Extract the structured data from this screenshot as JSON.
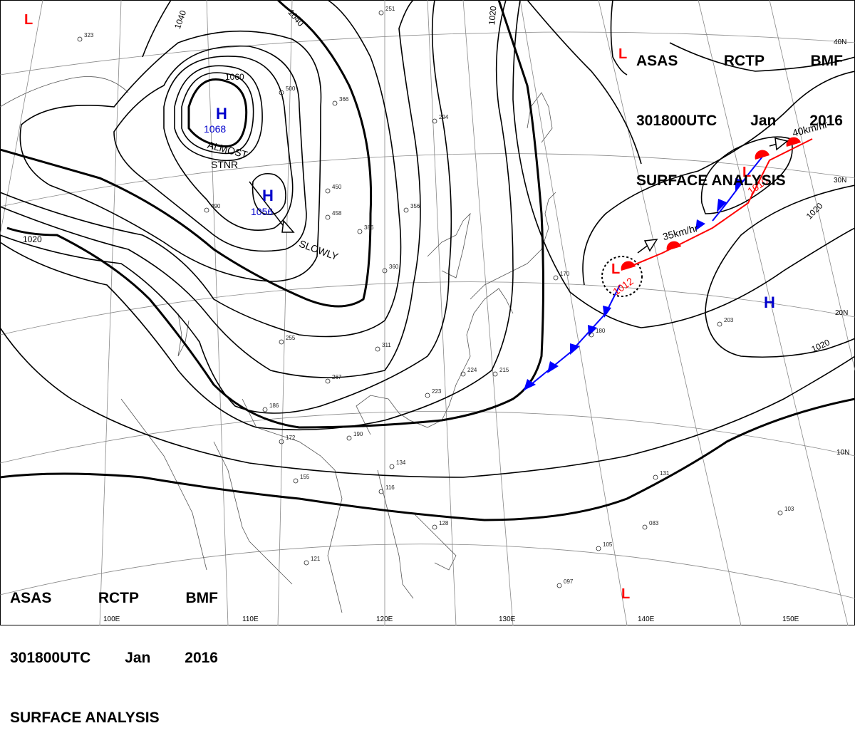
{
  "title": {
    "line1": [
      "ASAS",
      "RCTP",
      "BMF"
    ],
    "line2": [
      "301800UTC",
      "Jan",
      "2016"
    ],
    "line3": "SURFACE ANALYSIS"
  },
  "pressure_systems": [
    {
      "type": "H",
      "value": "1068",
      "color": "#0000cc"
    },
    {
      "type": "H",
      "value": "1056",
      "color": "#0000cc"
    },
    {
      "type": "H",
      "value": "",
      "color": "#0000cc"
    },
    {
      "type": "L",
      "value": "1012",
      "color": "#ff0000"
    },
    {
      "type": "L",
      "value": "1010",
      "color": "#ff0000"
    },
    {
      "type": "L",
      "value": "",
      "color": "#ff0000"
    },
    {
      "type": "L",
      "value": "",
      "color": "#ff0000"
    },
    {
      "type": "L",
      "value": "",
      "color": "#ff0000"
    }
  ],
  "isobar_labels": [
    "1040",
    "1040",
    "1060",
    "1020",
    "1020",
    "1020",
    "1020"
  ],
  "motion_labels": [
    "ALMOST",
    "STNR",
    "SLOWLY",
    "35km/hr",
    "40km/hr"
  ],
  "latitude_labels": [
    "40N",
    "30N",
    "20N",
    "10N"
  ],
  "longitude_labels": [
    "100E",
    "110E",
    "120E",
    "130E",
    "140E",
    "150E"
  ],
  "station_obs": [
    "323",
    "251",
    "366",
    "294",
    "500",
    "450",
    "490",
    "458",
    "386",
    "356",
    "360",
    "311",
    "267",
    "255",
    "186",
    "172",
    "155",
    "190",
    "134",
    "116",
    "128",
    "121",
    "223",
    "224",
    "215",
    "180",
    "170",
    "203",
    "131",
    "097",
    "105",
    "083",
    "103"
  ],
  "colors": {
    "high": "#0000cc",
    "low": "#ff0000",
    "cold_front": "#0000ff",
    "warm_front": "#ff0000",
    "isobar": "#000000",
    "grid": "#888888"
  }
}
